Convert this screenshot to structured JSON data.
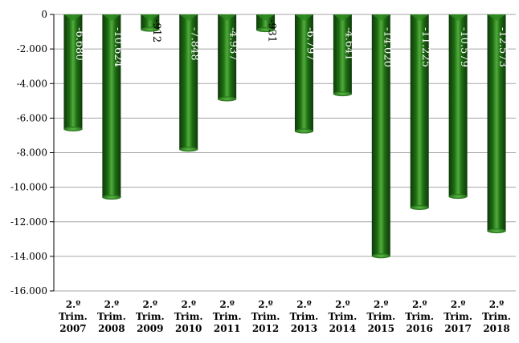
{
  "chart_data": {
    "type": "bar",
    "categories": [
      [
        "2.º",
        "Trim.",
        "2007"
      ],
      [
        "2.º",
        "Trim.",
        "2008"
      ],
      [
        "2.º",
        "Trim.",
        "2009"
      ],
      [
        "2.º",
        "Trim.",
        "2010"
      ],
      [
        "2.º",
        "Trim.",
        "2011"
      ],
      [
        "2.º",
        "Trim.",
        "2012"
      ],
      [
        "2.º",
        "Trim.",
        "2013"
      ],
      [
        "2.º",
        "Trim.",
        "2014"
      ],
      [
        "2.º",
        "Trim.",
        "2015"
      ],
      [
        "2.º",
        "Trim.",
        "2016"
      ],
      [
        "2.º",
        "Trim.",
        "2017"
      ],
      [
        "2.º",
        "Trim.",
        "2018"
      ]
    ],
    "values": [
      -6680,
      -10624,
      -912,
      -7848,
      -4937,
      -931,
      -6797,
      -4641,
      -14020,
      -11225,
      -10579,
      -12573
    ],
    "data_labels": [
      "-6.680",
      "-10.624",
      "-912",
      "-7.848",
      "-4.937",
      "-931",
      "-6.797",
      "-4.641",
      "-14.020",
      "-11.225",
      "-10.579",
      "-12.573"
    ],
    "ylim": [
      -16000,
      0
    ],
    "yticks": [
      0,
      -2000,
      -4000,
      -6000,
      -8000,
      -10000,
      -12000,
      -14000,
      -16000
    ],
    "ytick_labels": [
      "0",
      "-2.000",
      "-4.000",
      "-6.000",
      "-8.000",
      "-10.000",
      "-12.000",
      "-14.000",
      "-16.000"
    ],
    "grid": true,
    "bar_color": "#1f6b14",
    "bar_highlight": "#4fae3a",
    "bar_shadow": "#0d3a08"
  }
}
